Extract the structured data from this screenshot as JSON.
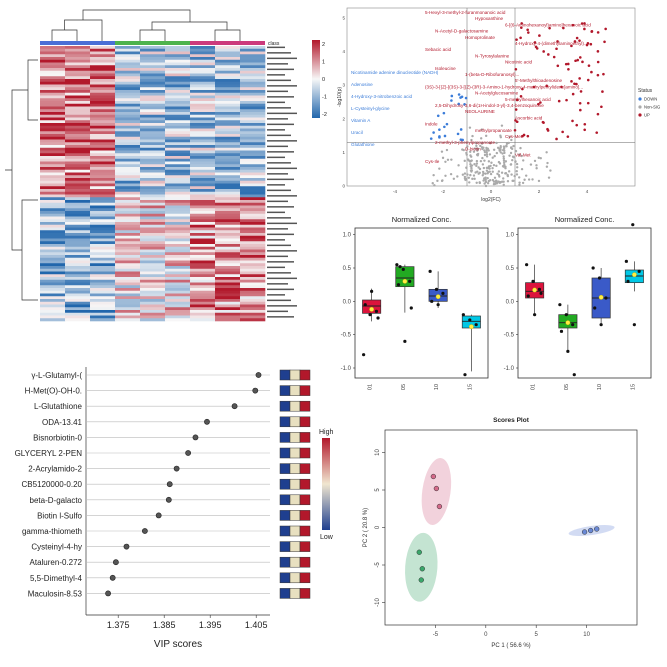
{
  "heatmap": {
    "legend_title": "class",
    "colorbar_ticks": [
      "2",
      "1",
      "0",
      "-1",
      "-2"
    ],
    "colors": {
      "high": "#b2182b",
      "mid": "#f7f7f7",
      "low": "#2166ac"
    },
    "class_colors": [
      "#4a6fd6",
      "#4a6fd6",
      "#4a6fd6",
      "#4db34d",
      "#4db34d",
      "#4db34d",
      "#cc3a7c",
      "#cc3a7c",
      "#cc3a7c"
    ],
    "rows": 100,
    "cols": 9
  },
  "volcano": {
    "xlabel": "log2(FC)",
    "ylabel": "-log10(p)",
    "x_ticks": [
      "-4",
      "-2",
      "0",
      "2",
      "4"
    ],
    "y_ticks": [
      "5",
      "4",
      "3",
      "2",
      "1",
      "0"
    ],
    "xlim": [
      -6,
      6
    ],
    "ylim": [
      0,
      5.3
    ],
    "legend_title": "Status",
    "legend": [
      {
        "label": "DOWN",
        "color": "#3c7dd9"
      },
      {
        "label": "Non-SIG",
        "color": "#aaaaaa"
      },
      {
        "label": "UP",
        "color": "#b2182b"
      }
    ],
    "labels_up": [
      "5-Hexyl-3-methyl-2-furanmonanoic acid",
      "Hypoxanthine",
      "6-[(6-Aminohexanoyl)amino]hexanoic acid",
      "N-Acetyl-D-galactosamine",
      "Homoprolinate",
      "4-Hydroxy-4-(dimethylaminoethyl)...",
      "Sebacic acid",
      "N-Tyrosylalanine",
      "Nicotinic acid",
      "Isoleucine",
      "1-(beta-D-Ribofuranosyl)...",
      "5'-Methylthioadenosine",
      "(3S)-3-[(Z)-[(3S)-3-[(Z)-(3R)-3-Amino-1-hydroxy-4-methylpentylidene]amino]...",
      "N-Acetylglucosamine",
      "5-methylhexanoic acid",
      "2,5-Dihydroxy-3,6-di(1H-indol-3-yl)-3,4-benzoquinone",
      "NEOLAURINE",
      "Ascorbic acid",
      "Indole",
      "methylpropanoate",
      "Cys-Met",
      "2-methyl-3-phenylpropanoate",
      "D-biotin",
      "Val-Met",
      "Cys-Ile"
    ],
    "labels_down": [
      "Nicotinamide adenine dinucleotide (NADH)",
      "Adenosine",
      "4-Hydroxy-3-nitrobenzoic acid",
      "L-Cysteinyl-glycine",
      "Vitamin A",
      "Uracil",
      "Glutathione"
    ],
    "thresholds": {
      "fc": 1,
      "p": 1.3
    }
  },
  "boxplots": [
    {
      "title": "Normalized Conc.",
      "y_ticks": [
        "1.0",
        "0.5",
        "0.0",
        "-0.5",
        "-1.0"
      ],
      "ylim": [
        -1.15,
        1.1
      ],
      "groups": [
        {
          "label": "01",
          "color": "#dc143c",
          "q1": -0.18,
          "med": -0.07,
          "q3": 0.02,
          "lo": -0.3,
          "hi": 0.19,
          "mean": -0.12,
          "pts": [
            -0.8,
            -0.2,
            -0.15,
            -0.05,
            0.15,
            -0.25
          ]
        },
        {
          "label": "05",
          "color": "#22aa22",
          "q1": 0.22,
          "med": 0.35,
          "q3": 0.52,
          "lo": -0.17,
          "hi": 0.55,
          "mean": 0.3,
          "pts": [
            0.55,
            0.48,
            0.3,
            0.25,
            -0.6,
            -0.1,
            0.52
          ]
        },
        {
          "label": "10",
          "color": "#3a5ac8",
          "q1": 0.0,
          "med": 0.08,
          "q3": 0.18,
          "lo": -0.1,
          "hi": 0.45,
          "mean": 0.07,
          "pts": [
            0.45,
            0.18,
            0.12,
            0.0,
            -0.05
          ]
        },
        {
          "label": "15",
          "color": "#00c8e6",
          "q1": -0.4,
          "med": -0.3,
          "q3": -0.22,
          "lo": -1.05,
          "hi": -0.2,
          "mean": -0.38,
          "pts": [
            -0.2,
            -0.28,
            -0.35,
            -1.1
          ]
        }
      ]
    },
    {
      "title": "Normalized Conc.",
      "y_ticks": [
        "1.0",
        "0.5",
        "0.0",
        "-0.5",
        "-1.0"
      ],
      "ylim": [
        -1.15,
        1.1
      ],
      "groups": [
        {
          "label": "01",
          "color": "#dc143c",
          "q1": 0.05,
          "med": 0.15,
          "q3": 0.28,
          "lo": -0.2,
          "hi": 0.55,
          "mean": 0.17,
          "pts": [
            0.55,
            0.3,
            0.18,
            0.08,
            -0.2,
            0.12
          ]
        },
        {
          "label": "05",
          "color": "#22aa22",
          "q1": -0.4,
          "med": -0.32,
          "q3": -0.2,
          "lo": -0.75,
          "hi": -0.05,
          "mean": -0.32,
          "pts": [
            -0.05,
            -0.2,
            -0.35,
            -0.45,
            -0.75,
            -1.1
          ]
        },
        {
          "label": "10",
          "color": "#3a5ac8",
          "q1": -0.25,
          "med": 0.05,
          "q3": 0.35,
          "lo": -0.35,
          "hi": 0.5,
          "mean": 0.06,
          "pts": [
            0.5,
            0.35,
            0.05,
            -0.1,
            -0.35
          ]
        },
        {
          "label": "15",
          "color": "#00c8e6",
          "q1": 0.28,
          "med": 0.38,
          "q3": 0.47,
          "lo": 0.15,
          "hi": 0.6,
          "mean": 0.4,
          "pts": [
            0.6,
            1.15,
            0.45,
            0.3,
            -0.35
          ]
        }
      ]
    }
  ],
  "vip": {
    "xlabel": "VIP scores",
    "x_ticks": [
      "1.375",
      "1.385",
      "1.395",
      "1.405"
    ],
    "xlim": [
      1.368,
      1.408
    ],
    "legend_high": "High",
    "legend_low": "Low",
    "items": [
      {
        "name": "γ-L-Glutamyl-(",
        "value": 1.4055,
        "cells": [
          "#1f3f8f",
          "#e8e0c0",
          "#b2182b"
        ]
      },
      {
        "name": "H-Met(O)-OH-0.",
        "value": 1.4048,
        "cells": [
          "#1f3f8f",
          "#e8e0c0",
          "#b2182b"
        ]
      },
      {
        "name": "L-Glutathione",
        "value": 1.4003,
        "cells": [
          "#1f3f8f",
          "#e8e0c0",
          "#b2182b"
        ]
      },
      {
        "name": "ODA-13.41",
        "value": 1.3943,
        "cells": [
          "#1f3f8f",
          "#e8e0c0",
          "#b2182b"
        ]
      },
      {
        "name": "Bisnorbiotin-0",
        "value": 1.3918,
        "cells": [
          "#1f3f8f",
          "#e8e0c0",
          "#b2182b"
        ]
      },
      {
        "name": "GLYCERYL 2-PEN",
        "value": 1.3902,
        "cells": [
          "#1f3f8f",
          "#e8e0c0",
          "#b2182b"
        ]
      },
      {
        "name": "2-Acrylamido-2",
        "value": 1.3877,
        "cells": [
          "#1f3f8f",
          "#e8e0c0",
          "#b2182b"
        ]
      },
      {
        "name": "CB5120000-0.20",
        "value": 1.3862,
        "cells": [
          "#1f3f8f",
          "#e8e0c0",
          "#b2182b"
        ]
      },
      {
        "name": "beta-D-galacto",
        "value": 1.386,
        "cells": [
          "#1f3f8f",
          "#e8e0c0",
          "#b2182b"
        ]
      },
      {
        "name": "Biotin l-Sulfo",
        "value": 1.3838,
        "cells": [
          "#1f3f8f",
          "#e8e0c0",
          "#b2182b"
        ]
      },
      {
        "name": "gamma-thiometh",
        "value": 1.3808,
        "cells": [
          "#1f3f8f",
          "#e8e0c0",
          "#b2182b"
        ]
      },
      {
        "name": "Cysteinyl-4-hy",
        "value": 1.3768,
        "cells": [
          "#1f3f8f",
          "#e8e0c0",
          "#b2182b"
        ]
      },
      {
        "name": "Ataluren-0.272",
        "value": 1.3745,
        "cells": [
          "#1f3f8f",
          "#e8e0c0",
          "#b2182b"
        ]
      },
      {
        "name": "5,5-Dimethyl-4",
        "value": 1.3738,
        "cells": [
          "#1f3f8f",
          "#e8e0c0",
          "#b2182b"
        ]
      },
      {
        "name": "Maculosin-8.53",
        "value": 1.3728,
        "cells": [
          "#1f3f8f",
          "#e8e0c0",
          "#b2182b"
        ]
      }
    ]
  },
  "pca": {
    "title": "Scores Plot",
    "xlabel": "PC 1 ( 56.6 %)",
    "ylabel": "PC 2 ( 20.8 %)",
    "x_ticks": [
      "-5",
      "0",
      "5",
      "10"
    ],
    "y_ticks": [
      "10",
      "5",
      "0",
      "-5",
      "-10"
    ],
    "xlim": [
      -10,
      15
    ],
    "ylim": [
      -13,
      13
    ],
    "groups": [
      {
        "color": "#d46a8a",
        "pts": [
          [
            -5.2,
            6.8
          ],
          [
            -4.9,
            5.2
          ],
          [
            -4.6,
            2.8
          ]
        ],
        "ellipse": {
          "cx": -4.9,
          "cy": 4.8,
          "rx": 1.4,
          "ry": 4.5,
          "rot": 8
        }
      },
      {
        "color": "#3aa66a",
        "pts": [
          [
            -6.6,
            -3.3
          ],
          [
            -6.3,
            -5.5
          ],
          [
            -6.4,
            -7.0
          ]
        ],
        "ellipse": {
          "cx": -6.4,
          "cy": -5.3,
          "rx": 1.6,
          "ry": 4.6,
          "rot": 4
        }
      },
      {
        "color": "#6a89d6",
        "pts": [
          [
            9.8,
            -0.6
          ],
          [
            10.4,
            -0.4
          ],
          [
            11.0,
            -0.2
          ]
        ],
        "ellipse": {
          "cx": 10.5,
          "cy": -0.4,
          "rx": 2.3,
          "ry": 0.6,
          "rot": -8
        }
      }
    ]
  },
  "chart_data": [
    {
      "type": "heatmap",
      "title": "",
      "rows": 100,
      "cols": 9,
      "legend": "class"
    },
    {
      "type": "scatter",
      "title": "",
      "xlabel": "log2(FC)",
      "ylabel": "-log10(p)",
      "legend": [
        "DOWN",
        "Non-SIG",
        "UP"
      ]
    },
    {
      "type": "bar",
      "title": "Normalized Conc.",
      "categories": [
        "01",
        "05",
        "10",
        "15"
      ],
      "values": [
        -0.07,
        0.35,
        0.08,
        -0.3
      ]
    },
    {
      "type": "bar",
      "title": "Normalized Conc.",
      "categories": [
        "01",
        "05",
        "10",
        "15"
      ],
      "values": [
        0.15,
        -0.32,
        0.05,
        0.38
      ]
    },
    {
      "type": "scatter",
      "title": "",
      "xlabel": "VIP scores",
      "categories": [
        "γ-L-Glutamyl-(",
        "H-Met(O)-OH-0.",
        "L-Glutathione",
        "ODA-13.41",
        "Bisnorbiotin-0",
        "GLYCERYL 2-PEN",
        "2-Acrylamido-2",
        "CB5120000-0.20",
        "beta-D-galacto",
        "Biotin l-Sulfo",
        "gamma-thiometh",
        "Cysteinyl-4-hy",
        "Ataluren-0.272",
        "5,5-Dimethyl-4",
        "Maculosin-8.53"
      ],
      "values": [
        1.4055,
        1.4048,
        1.4003,
        1.3943,
        1.3918,
        1.3902,
        1.3877,
        1.3862,
        1.386,
        1.3838,
        1.3808,
        1.3768,
        1.3745,
        1.3738,
        1.3728
      ]
    },
    {
      "type": "scatter",
      "title": "Scores Plot",
      "xlabel": "PC 1 ( 56.6 %)",
      "ylabel": "PC 2 ( 20.8 %)",
      "series": [
        {
          "values": [
            [
              -5.2,
              6.8
            ],
            [
              -4.9,
              5.2
            ],
            [
              -4.6,
              2.8
            ]
          ]
        },
        {
          "values": [
            [
              -6.6,
              -3.3
            ],
            [
              -6.3,
              -5.5
            ],
            [
              -6.4,
              -7.0
            ]
          ]
        },
        {
          "values": [
            [
              9.8,
              -0.6
            ],
            [
              10.4,
              -0.4
            ],
            [
              11.0,
              -0.2
            ]
          ]
        }
      ]
    }
  ]
}
